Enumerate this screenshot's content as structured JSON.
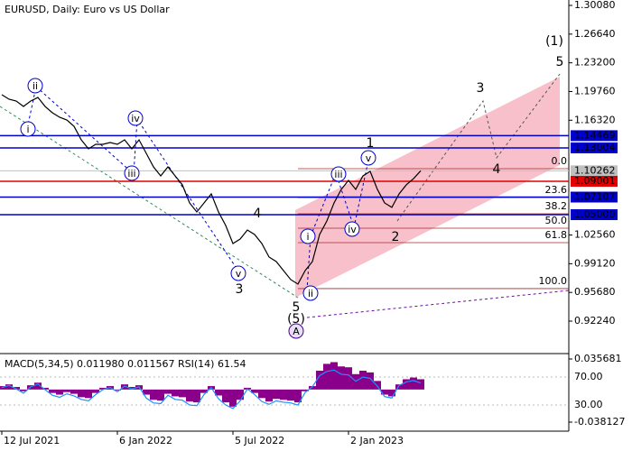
{
  "chart_data": [
    {
      "type": "line",
      "title": "EURUSD, Daily:  Euro vs US Dollar",
      "color": "#000000",
      "categories": [
        "12 Jul 2021",
        null,
        null,
        null,
        null,
        null,
        null,
        null,
        null,
        null,
        null,
        null,
        null,
        null,
        null,
        null,
        "6 Jan 2022",
        null,
        null,
        null,
        null,
        null,
        null,
        null,
        null,
        null,
        null,
        null,
        null,
        null,
        null,
        null,
        "5 Jul 2022",
        null,
        null,
        null,
        null,
        null,
        null,
        null,
        null,
        null,
        null,
        null,
        null,
        null,
        null,
        null,
        "2 Jan 2023",
        null,
        null,
        null,
        null,
        null,
        null,
        null,
        null,
        null,
        null
      ],
      "values": [
        1.1938,
        1.1884,
        1.1862,
        1.1797,
        1.1862,
        1.1905,
        1.1797,
        1.1722,
        1.1668,
        1.1635,
        1.1559,
        1.1397,
        1.1289,
        1.1343,
        1.1343,
        1.1365,
        1.1343,
        1.1397,
        1.1289,
        1.1397,
        1.1235,
        1.1073,
        1.0965,
        1.1073,
        1.0965,
        1.0857,
        1.0641,
        1.0533,
        1.0641,
        1.0749,
        1.0533,
        1.037,
        1.0154,
        1.0208,
        1.0316,
        1.0262,
        1.0154,
        0.9992,
        0.9938,
        0.983,
        0.9722,
        0.9668,
        0.983,
        0.9938,
        1.0262,
        1.0424,
        1.0641,
        1.0803,
        1.0911,
        1.0803,
        1.0965,
        1.1019,
        1.0803,
        1.0641,
        1.0587,
        1.0749,
        1.0857,
        1.0932,
        1.1026
      ],
      "ylim": [
        0.8835,
        1.3073
      ],
      "yticks": [
        {
          "value": 1.3008,
          "label": "1.30080"
        },
        {
          "value": 1.2664,
          "label": "1.26640"
        },
        {
          "value": 1.232,
          "label": "1.23200"
        },
        {
          "value": 1.1976,
          "label": "1.19760"
        },
        {
          "value": 1.1632,
          "label": "1.16320"
        },
        {
          "value": 1.0256,
          "label": "1.02560"
        },
        {
          "value": 0.9912,
          "label": "0.99120"
        },
        {
          "value": 0.9568,
          "label": "0.95680"
        },
        {
          "value": 0.9224,
          "label": "0.92240"
        }
      ],
      "hlines": [
        {
          "value": 1.14469,
          "label": "1.14469",
          "color": "#0000cc"
        },
        {
          "value": 1.13004,
          "label": "1.13004",
          "color": "#0000cc"
        },
        {
          "value": 1.10262,
          "label": "1.10262",
          "color": "#c0c0c0"
        },
        {
          "value": 1.09001,
          "label": "1.09001",
          "color": "#e00000"
        },
        {
          "value": 1.07107,
          "label": "1.07107",
          "color": "#0000cc"
        },
        {
          "value": 1.05,
          "label": "1.05000",
          "color": "#0000cc"
        }
      ],
      "fib_levels": [
        {
          "value": 1.1051,
          "label": "0.0"
        },
        {
          "value": 1.0706,
          "label": "23.6"
        },
        {
          "value": 1.0511,
          "label": "38.2"
        },
        {
          "value": 1.0338,
          "label": "50.0"
        },
        {
          "value": 1.0165,
          "label": "61.8"
        },
        {
          "value": 0.9614,
          "label": "100.0"
        }
      ],
      "fib_color": "#a52a2a",
      "annotations": [
        "(1)",
        "5",
        "3",
        "4",
        "1",
        "2",
        "ii",
        "i",
        "iv",
        "iii",
        "v",
        "v",
        "iii",
        "iv",
        "i",
        "ii",
        "4",
        "3",
        "5",
        "(5)",
        "A"
      ]
    },
    {
      "type": "bar",
      "label": "MACD(5,34,5) 0.011980 0.011567 RSI(14) 61.54",
      "ylim": [
        -0.04867,
        0.04095
      ],
      "yticks": [
        0.035681,
        -0.038127
      ],
      "y2lim": [
        -7.4,
        102.3
      ],
      "y2ticks": [
        {
          "value": 70,
          "label": "70.00"
        },
        {
          "value": 30,
          "label": "30.00"
        }
      ],
      "series": [
        {
          "color": "#8b008b",
          "values": [
            0.004,
            0.006,
            0.003,
            -0.002,
            0.005,
            0.008,
            0.002,
            -0.004,
            -0.006,
            -0.003,
            -0.005,
            -0.009,
            -0.01,
            -0.004,
            0.002,
            0.004,
            -0.001,
            0.006,
            0.003,
            0.005,
            -0.006,
            -0.012,
            -0.013,
            -0.005,
            -0.008,
            -0.009,
            -0.014,
            -0.015,
            -0.004,
            0.004,
            -0.007,
            -0.015,
            -0.02,
            -0.012,
            0.002,
            -0.004,
            -0.01,
            -0.014,
            -0.011,
            -0.012,
            -0.013,
            -0.015,
            -0.002,
            0.004,
            0.022,
            0.03,
            0.032,
            0.027,
            0.026,
            0.018,
            0.022,
            0.02,
            0.01,
            -0.006,
            -0.008,
            0.006,
            0.012,
            0.014,
            0.012
          ]
        },
        {
          "color": "#1e90ff",
          "type": "line",
          "axis": "y2",
          "values": [
            55,
            58,
            53,
            47,
            56,
            60,
            52,
            44,
            41,
            46,
            43,
            38,
            36,
            45,
            52,
            55,
            49,
            57,
            53,
            56,
            40,
            33,
            32,
            44,
            38,
            37,
            30,
            29,
            45,
            55,
            39,
            30,
            25,
            36,
            53,
            45,
            35,
            31,
            36,
            34,
            33,
            30,
            48,
            56,
            72,
            78,
            80,
            74,
            73,
            64,
            70,
            68,
            57,
            42,
            40,
            58,
            63,
            65,
            61.54
          ]
        }
      ]
    }
  ]
}
